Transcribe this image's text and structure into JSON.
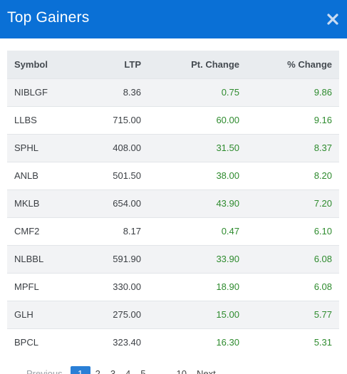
{
  "modal": {
    "title": "Top Gainers"
  },
  "table": {
    "headers": {
      "symbol": "Symbol",
      "ltp": "LTP",
      "pt_change": "Pt. Change",
      "pct_change": "% Change"
    },
    "rows": [
      {
        "symbol": "NIBLGF",
        "ltp": "8.36",
        "pt_change": "0.75",
        "pct_change": "9.86"
      },
      {
        "symbol": "LLBS",
        "ltp": "715.00",
        "pt_change": "60.00",
        "pct_change": "9.16"
      },
      {
        "symbol": "SPHL",
        "ltp": "408.00",
        "pt_change": "31.50",
        "pct_change": "8.37"
      },
      {
        "symbol": "ANLB",
        "ltp": "501.50",
        "pt_change": "38.00",
        "pct_change": "8.20"
      },
      {
        "symbol": "MKLB",
        "ltp": "654.00",
        "pt_change": "43.90",
        "pct_change": "7.20"
      },
      {
        "symbol": "CMF2",
        "ltp": "8.17",
        "pt_change": "0.47",
        "pct_change": "6.10"
      },
      {
        "symbol": "NLBBL",
        "ltp": "591.90",
        "pt_change": "33.90",
        "pct_change": "6.08"
      },
      {
        "symbol": "MPFL",
        "ltp": "330.00",
        "pt_change": "18.90",
        "pct_change": "6.08"
      },
      {
        "symbol": "GLH",
        "ltp": "275.00",
        "pt_change": "15.00",
        "pct_change": "5.77"
      },
      {
        "symbol": "BPCL",
        "ltp": "323.40",
        "pt_change": "16.30",
        "pct_change": "5.31"
      }
    ]
  },
  "pagination": {
    "previous": "Previous",
    "pages": [
      "1",
      "2",
      "3",
      "4",
      "5"
    ],
    "ellipsis": "…",
    "last": "10",
    "next": "Next",
    "current": "1"
  },
  "colors": {
    "header_bg": "#0a70d6",
    "gain": "#2e8b2e",
    "current_page": "#2a7fd6"
  },
  "icons": {
    "close": "close-icon"
  }
}
